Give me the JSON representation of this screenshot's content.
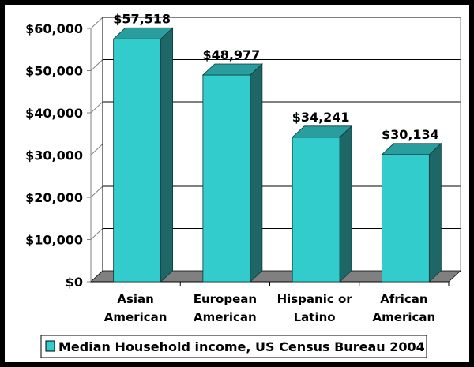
{
  "chart_data": {
    "type": "bar",
    "title": "",
    "xlabel": "",
    "ylabel": "",
    "categories": [
      "Asian American",
      "European American",
      "Hispanic or Latino",
      "African American"
    ],
    "category_lines": [
      [
        "Asian",
        "American"
      ],
      [
        "European",
        "American"
      ],
      [
        "Hispanic or",
        "Latino"
      ],
      [
        "African",
        "American"
      ]
    ],
    "series": [
      {
        "name": "Median Household income, US Census Bureau 2004",
        "values": [
          57518,
          48977,
          34241,
          30134
        ]
      }
    ],
    "data_labels": [
      "$57,518",
      "$48,977",
      "$34,241",
      "$30,134"
    ],
    "yticks": [
      0,
      10000,
      20000,
      30000,
      40000,
      50000,
      60000
    ],
    "ytick_labels": [
      "$0",
      "$10,000",
      "$20,000",
      "$30,000",
      "$40,000",
      "$50,000",
      "$60,000"
    ],
    "ylim": [
      0,
      60000
    ],
    "grid": true,
    "style": "3d-column",
    "legend_position": "bottom",
    "colors": {
      "bar_front": "#33CCCC",
      "bar_top": "#2A9E9E",
      "bar_side": "#1F6666",
      "floor": "#808080",
      "frame": "#000000"
    }
  },
  "legend": {
    "label": "Median Household income, US Census Bureau 2004"
  }
}
